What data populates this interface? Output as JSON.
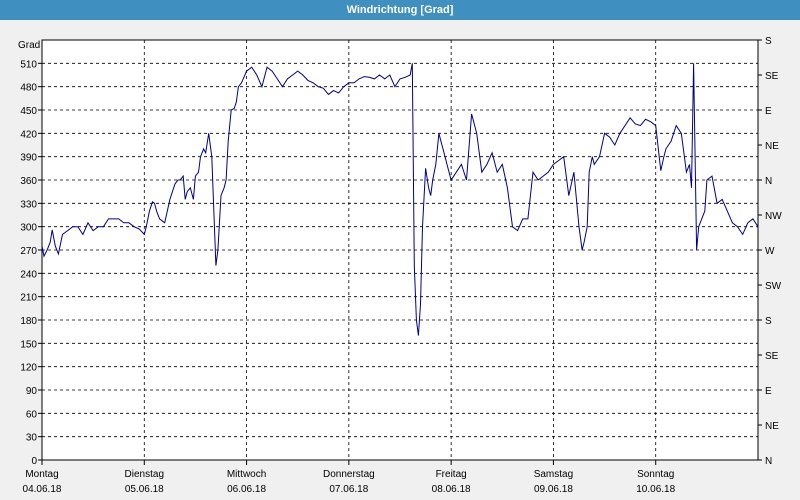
{
  "window": {
    "title": "Windrichtung [Grad]"
  },
  "chart_data": {
    "type": "line",
    "title": "Windrichtung [Grad]",
    "ylabel": "Grad",
    "ylim": [
      0,
      540
    ],
    "y_ticks": [
      0,
      30,
      60,
      90,
      120,
      150,
      180,
      210,
      240,
      270,
      300,
      330,
      360,
      390,
      420,
      450,
      480,
      510
    ],
    "right_axis_labels": [
      "N",
      "NE",
      "E",
      "SE",
      "S",
      "SW",
      "W",
      "NW",
      "N",
      "NE",
      "E",
      "SE",
      "S"
    ],
    "x_categories": [
      {
        "day": "Montag",
        "date": "04.06.18"
      },
      {
        "day": "Dienstag",
        "date": "05.06.18"
      },
      {
        "day": "Mittwoch",
        "date": "06.06.18"
      },
      {
        "day": "Donnerstag",
        "date": "07.06.18"
      },
      {
        "day": "Freitag",
        "date": "08.06.18"
      },
      {
        "day": "Samstag",
        "date": "09.06.18"
      },
      {
        "day": "Sonntag",
        "date": "10.06.18"
      }
    ],
    "xlim_days": [
      0,
      7
    ],
    "grid": true,
    "line_color": "#00008b",
    "series": [
      {
        "x": [
          0.0,
          0.02,
          0.05,
          0.08,
          0.1,
          0.13,
          0.16,
          0.2,
          0.25,
          0.3,
          0.35,
          0.4,
          0.45,
          0.5,
          0.55,
          0.6,
          0.65,
          0.7,
          0.75,
          0.8,
          0.85,
          0.9,
          0.95,
          1.0,
          1.02,
          1.05,
          1.08,
          1.1,
          1.12,
          1.15,
          1.2,
          1.25,
          1.3,
          1.33,
          1.35,
          1.38,
          1.4,
          1.42,
          1.45,
          1.48,
          1.5,
          1.53,
          1.55,
          1.58,
          1.6,
          1.63,
          1.66,
          1.7,
          1.72,
          1.75,
          1.78,
          1.8,
          1.82,
          1.85,
          1.88,
          1.9,
          1.92,
          1.95,
          2.0,
          2.05,
          2.1,
          2.15,
          2.2,
          2.25,
          2.3,
          2.35,
          2.4,
          2.45,
          2.5,
          2.55,
          2.6,
          2.65,
          2.7,
          2.75,
          2.8,
          2.85,
          2.9,
          2.95,
          3.0,
          3.05,
          3.1,
          3.15,
          3.2,
          3.25,
          3.3,
          3.35,
          3.4,
          3.45,
          3.5,
          3.55,
          3.6,
          3.62,
          3.64,
          3.66,
          3.68,
          3.7,
          3.72,
          3.75,
          3.78,
          3.8,
          3.82,
          3.85,
          3.88,
          3.9,
          3.92,
          3.95,
          4.0,
          4.05,
          4.1,
          4.15,
          4.2,
          4.25,
          4.3,
          4.35,
          4.4,
          4.45,
          4.5,
          4.55,
          4.6,
          4.65,
          4.7,
          4.75,
          4.8,
          4.85,
          4.9,
          4.95,
          5.0,
          5.05,
          5.1,
          5.15,
          5.2,
          5.25,
          5.28,
          5.3,
          5.33,
          5.35,
          5.38,
          5.4,
          5.45,
          5.5,
          5.55,
          5.6,
          5.65,
          5.7,
          5.75,
          5.8,
          5.85,
          5.9,
          5.95,
          6.0,
          6.05,
          6.08,
          6.1,
          6.15,
          6.2,
          6.25,
          6.28,
          6.3,
          6.33,
          6.35,
          6.37,
          6.4,
          6.42,
          6.45,
          6.48,
          6.5,
          6.55,
          6.6,
          6.65,
          6.7,
          6.75,
          6.8,
          6.85,
          6.9,
          6.95,
          7.0
        ],
        "y": [
          275,
          262,
          270,
          280,
          296,
          275,
          265,
          290,
          295,
          300,
          300,
          290,
          305,
          295,
          300,
          300,
          310,
          310,
          310,
          305,
          305,
          300,
          297,
          290,
          300,
          320,
          332,
          330,
          320,
          310,
          305,
          335,
          355,
          360,
          360,
          365,
          335,
          345,
          350,
          335,
          365,
          370,
          390,
          400,
          395,
          420,
          390,
          250,
          270,
          340,
          350,
          360,
          410,
          450,
          452,
          460,
          480,
          485,
          500,
          505,
          495,
          480,
          505,
          500,
          490,
          480,
          490,
          495,
          500,
          495,
          488,
          485,
          480,
          478,
          470,
          475,
          472,
          480,
          485,
          485,
          490,
          493,
          492,
          490,
          495,
          490,
          495,
          480,
          490,
          492,
          495,
          510,
          250,
          180,
          160,
          200,
          300,
          375,
          350,
          340,
          360,
          380,
          420,
          410,
          400,
          385,
          360,
          370,
          380,
          360,
          445,
          420,
          370,
          380,
          395,
          370,
          380,
          350,
          300,
          295,
          310,
          310,
          370,
          360,
          365,
          370,
          380,
          385,
          390,
          340,
          370,
          300,
          270,
          280,
          300,
          370,
          390,
          380,
          390,
          420,
          415,
          405,
          420,
          430,
          440,
          432,
          430,
          438,
          435,
          430,
          372,
          390,
          400,
          410,
          430,
          420,
          390,
          370,
          380,
          350,
          510,
          270,
          300,
          310,
          320,
          360,
          365,
          330,
          335,
          320,
          305,
          300,
          290,
          305,
          310,
          300
        ]
      }
    ]
  }
}
